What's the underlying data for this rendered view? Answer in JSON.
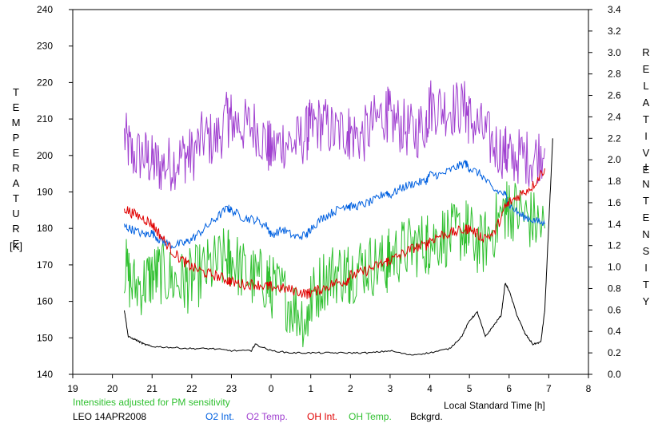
{
  "chart_data": {
    "type": "line",
    "xlabel": "Local Standard Time [h]",
    "ylabel_left": "TEMPERATURE [K]",
    "ylabel_right": "RELATIVE INTENSITY",
    "ylabel_left_word": "TEMPERATURE",
    "ylabel_left_unit": "[K]",
    "ylabel_right_word1": "RELATIVE",
    "ylabel_right_word2": "INTENSITY",
    "note": "Intensities adjusted for PM sensitivity",
    "station_date": "LEO 14APR2008",
    "x_ticks": [
      "19",
      "20",
      "21",
      "22",
      "23",
      "0",
      "1",
      "2",
      "3",
      "4",
      "5",
      "6",
      "7",
      "8"
    ],
    "xlim": [
      19,
      32
    ],
    "ylim_left": [
      140,
      240
    ],
    "ylim_right": [
      0.0,
      3.4
    ],
    "y_left_ticks": [
      "140",
      "150",
      "160",
      "170",
      "180",
      "190",
      "200",
      "210",
      "220",
      "230",
      "240"
    ],
    "y_right_ticks": [
      "0.0",
      "0.2",
      "0.4",
      "0.6",
      "0.8",
      "1.0",
      "1.2",
      "1.4",
      "1.6",
      "1.8",
      "2.0",
      "2.2",
      "2.4",
      "2.6",
      "2.8",
      "3.0",
      "3.2",
      "3.4"
    ],
    "grid": false,
    "legend_position": "bottom",
    "series": [
      {
        "name": "O2 Int.",
        "color": "#0060e0",
        "axis": "right",
        "x": [
          20.3,
          20.5,
          20.8,
          21.0,
          21.2,
          21.5,
          21.8,
          22.0,
          22.3,
          22.6,
          22.9,
          23.0,
          23.3,
          23.6,
          23.9,
          24.0,
          24.3,
          24.6,
          24.9,
          25.0,
          25.3,
          25.6,
          25.9,
          26.0,
          26.3,
          26.6,
          26.9,
          27.0,
          27.3,
          27.6,
          27.9,
          28.0,
          28.3,
          28.6,
          28.9,
          29.0,
          29.3,
          29.6,
          29.9,
          30.0,
          30.3,
          30.6,
          30.9
        ],
        "y": [
          1.38,
          1.35,
          1.3,
          1.32,
          1.25,
          1.2,
          1.22,
          1.26,
          1.35,
          1.45,
          1.55,
          1.53,
          1.46,
          1.44,
          1.38,
          1.3,
          1.35,
          1.28,
          1.3,
          1.36,
          1.46,
          1.52,
          1.58,
          1.56,
          1.58,
          1.62,
          1.7,
          1.67,
          1.74,
          1.78,
          1.8,
          1.86,
          1.86,
          1.92,
          1.97,
          1.92,
          1.86,
          1.72,
          1.68,
          1.58,
          1.48,
          1.44,
          1.4
        ]
      },
      {
        "name": "O2 Temp.",
        "color": "#a040d0",
        "axis": "left",
        "x": [
          20.3,
          20.5,
          20.8,
          21.0,
          21.2,
          21.5,
          21.8,
          22.0,
          22.3,
          22.6,
          22.9,
          23.0,
          23.3,
          23.6,
          23.9,
          24.0,
          24.3,
          24.6,
          24.9,
          25.0,
          25.3,
          25.6,
          25.9,
          26.0,
          26.3,
          26.6,
          26.9,
          27.0,
          27.3,
          27.6,
          27.9,
          28.0,
          28.3,
          28.6,
          28.9,
          29.0,
          29.3,
          29.6,
          29.9,
          30.0,
          30.3,
          30.6,
          30.9
        ],
        "y": [
          205,
          200,
          200,
          198,
          197,
          198,
          200,
          200,
          205,
          204,
          210,
          210,
          208,
          208,
          203,
          201,
          204,
          203,
          206,
          208,
          209,
          206,
          207,
          206,
          205,
          209,
          212,
          210,
          208,
          206,
          209,
          214,
          213,
          213,
          213,
          210,
          207,
          203,
          201,
          199,
          200,
          199,
          202
        ]
      },
      {
        "name": "OH Int.",
        "color": "#e00000",
        "axis": "right",
        "x": [
          20.3,
          20.5,
          20.8,
          21.0,
          21.2,
          21.5,
          21.8,
          22.0,
          22.3,
          22.6,
          22.9,
          23.0,
          23.3,
          23.6,
          23.9,
          24.0,
          24.3,
          24.6,
          24.9,
          25.0,
          25.3,
          25.6,
          25.9,
          26.0,
          26.3,
          26.6,
          26.9,
          27.0,
          27.3,
          27.6,
          27.9,
          28.0,
          28.3,
          28.6,
          28.9,
          29.0,
          29.3,
          29.6,
          29.9,
          30.0,
          30.3,
          30.6,
          30.9
        ],
        "y": [
          1.55,
          1.5,
          1.45,
          1.4,
          1.3,
          1.15,
          1.05,
          1.0,
          0.95,
          0.92,
          0.88,
          0.86,
          0.84,
          0.84,
          0.82,
          0.82,
          0.8,
          0.78,
          0.75,
          0.76,
          0.8,
          0.85,
          0.87,
          0.92,
          0.95,
          1.0,
          1.05,
          1.06,
          1.12,
          1.18,
          1.2,
          1.25,
          1.3,
          1.32,
          1.35,
          1.36,
          1.28,
          1.3,
          1.55,
          1.6,
          1.68,
          1.76,
          1.92
        ]
      },
      {
        "name": "OH Temp.",
        "color": "#30c030",
        "axis": "left",
        "x": [
          20.3,
          20.5,
          20.8,
          21.0,
          21.2,
          21.5,
          21.8,
          22.0,
          22.3,
          22.6,
          22.9,
          23.0,
          23.3,
          23.6,
          23.9,
          24.0,
          24.3,
          24.6,
          24.9,
          25.0,
          25.3,
          25.6,
          25.9,
          26.0,
          26.3,
          26.6,
          26.9,
          27.0,
          27.3,
          27.6,
          27.9,
          28.0,
          28.3,
          28.6,
          28.9,
          29.0,
          29.3,
          29.6,
          29.9,
          30.0,
          30.3,
          30.6,
          30.9
        ],
        "y": [
          170,
          164,
          165,
          167,
          168,
          166,
          165,
          166,
          168,
          170,
          172,
          172,
          168,
          166,
          166,
          164,
          162,
          158,
          155,
          160,
          166,
          168,
          168,
          168,
          170,
          170,
          170,
          172,
          174,
          175,
          176,
          176,
          178,
          178,
          180,
          178,
          175,
          180,
          185,
          186,
          184,
          182,
          180
        ]
      },
      {
        "name": "Bckgrd.",
        "color": "#000000",
        "axis": "right",
        "x": [
          20.3,
          20.4,
          20.6,
          20.8,
          21.0,
          21.5,
          22.0,
          22.5,
          23.0,
          23.5,
          23.6,
          24.0,
          24.5,
          25.0,
          25.5,
          26.0,
          26.5,
          27.0,
          27.5,
          28.0,
          28.5,
          28.8,
          29.0,
          29.2,
          29.4,
          29.6,
          29.8,
          29.9,
          30.0,
          30.2,
          30.4,
          30.6,
          30.8,
          30.9,
          31.0,
          31.1
        ],
        "y": [
          0.6,
          0.35,
          0.32,
          0.28,
          0.26,
          0.25,
          0.24,
          0.24,
          0.22,
          0.22,
          0.28,
          0.22,
          0.2,
          0.2,
          0.2,
          0.2,
          0.2,
          0.22,
          0.18,
          0.2,
          0.24,
          0.35,
          0.5,
          0.58,
          0.35,
          0.45,
          0.55,
          0.85,
          0.78,
          0.55,
          0.38,
          0.28,
          0.3,
          0.6,
          1.4,
          2.2
        ]
      }
    ]
  }
}
